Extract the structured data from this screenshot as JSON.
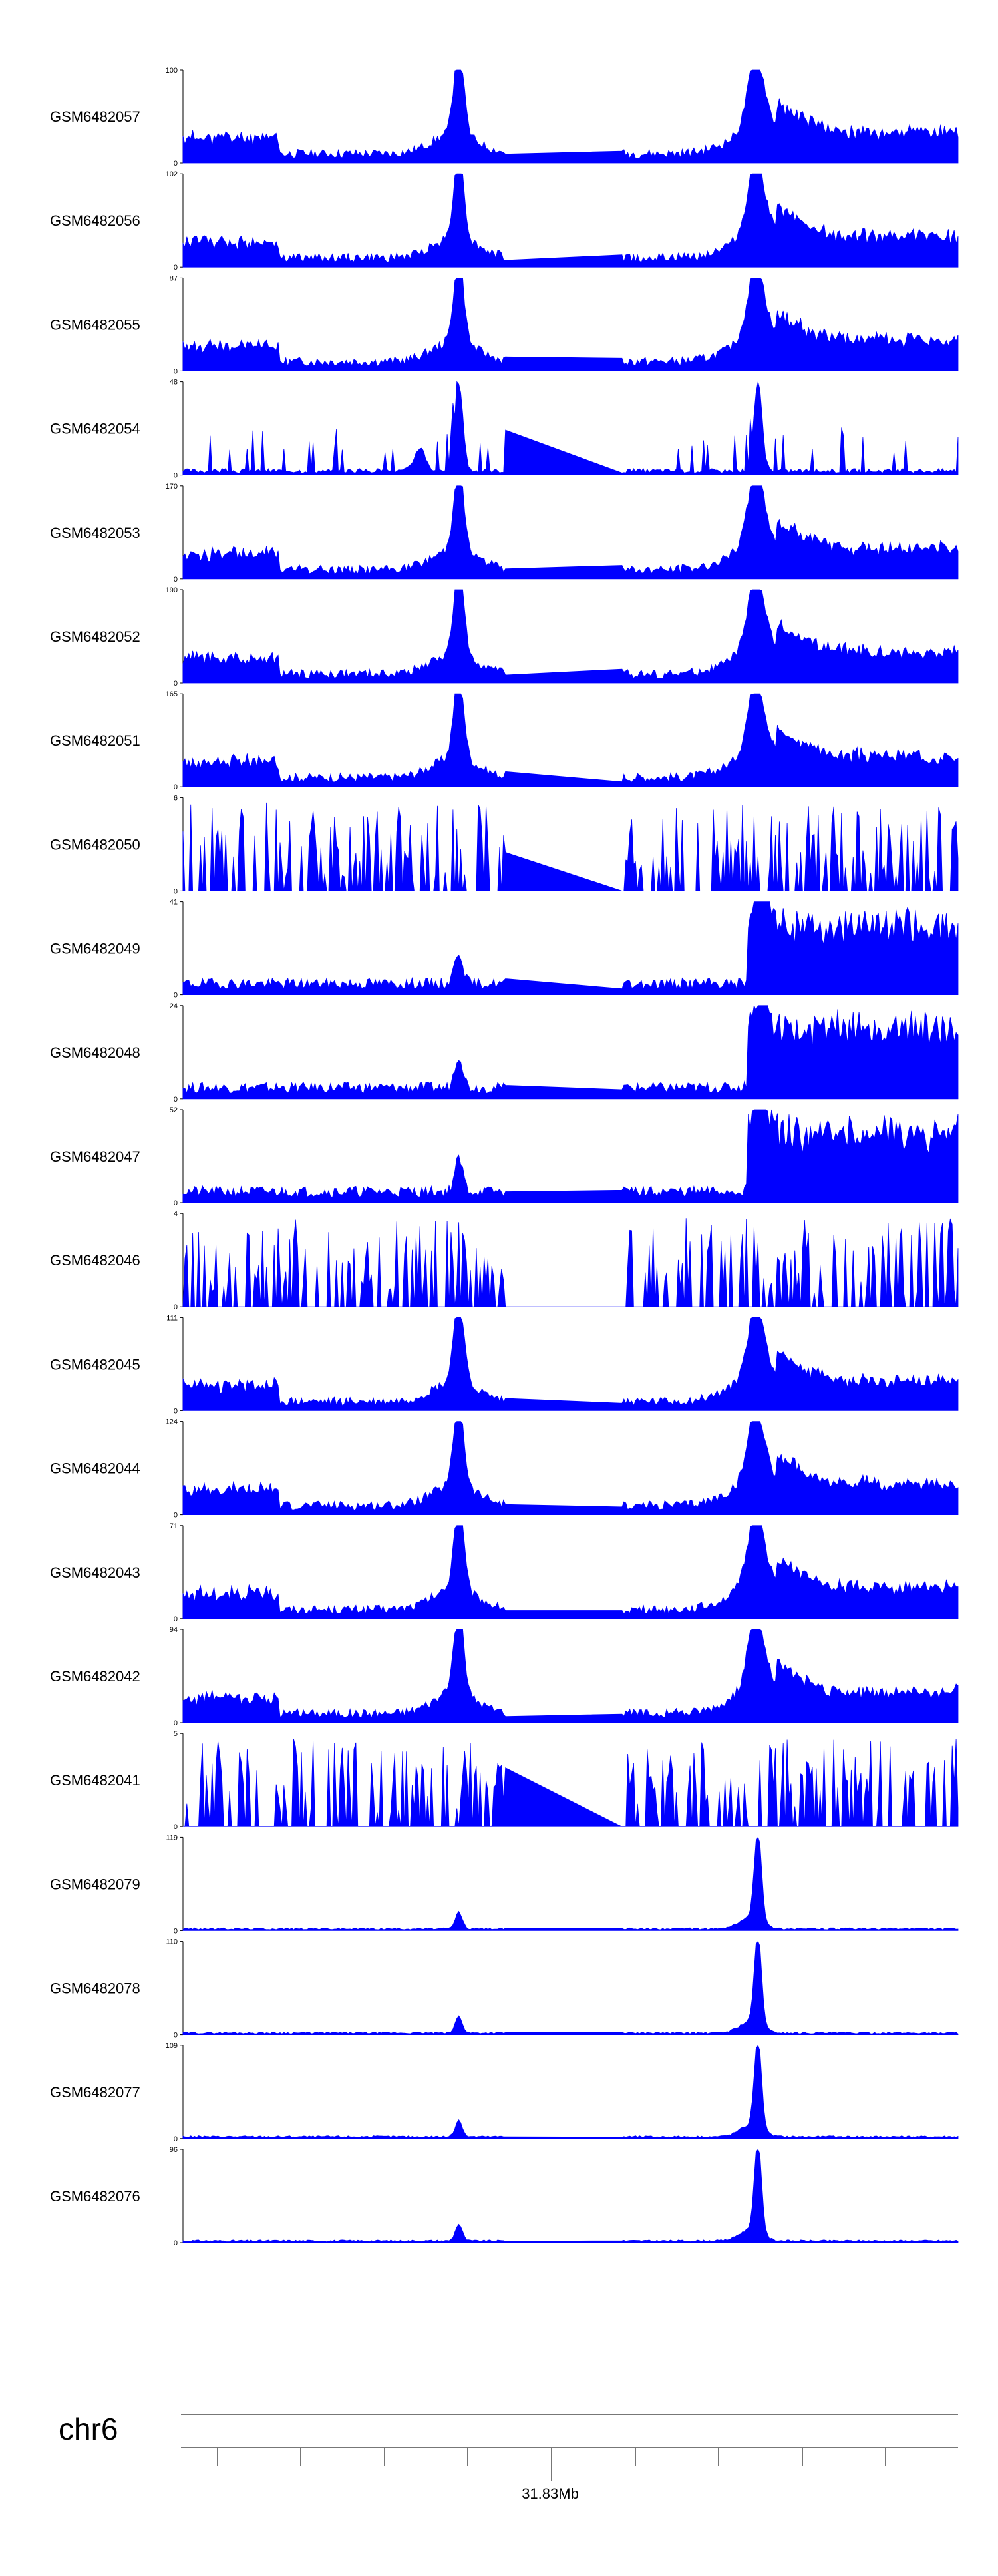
{
  "chromosome": "chr6",
  "position_label": "31.83Mb",
  "fill_color": "#0000ff",
  "axis_color": "#000000",
  "chart_data": {
    "type": "area",
    "title": "",
    "xlabel": "chr6",
    "ylabel": "",
    "x_tick_labels": [
      "31.83Mb"
    ],
    "series": [
      {
        "name": "GSM6482057",
        "ymax": 100,
        "ymin": 0,
        "profile": "A",
        "seed": 11
      },
      {
        "name": "GSM6482056",
        "ymax": 102,
        "ymin": 0,
        "profile": "A",
        "seed": 12
      },
      {
        "name": "GSM6482055",
        "ymax": 87,
        "ymin": 0,
        "profile": "A",
        "seed": 13
      },
      {
        "name": "GSM6482054",
        "ymax": 48,
        "ymin": 0,
        "profile": "N",
        "seed": 14
      },
      {
        "name": "GSM6482053",
        "ymax": 170,
        "ymin": 0,
        "profile": "A",
        "seed": 15
      },
      {
        "name": "GSM6482052",
        "ymax": 190,
        "ymin": 0,
        "profile": "A",
        "seed": 16
      },
      {
        "name": "GSM6482051",
        "ymax": 165,
        "ymin": 0,
        "profile": "A",
        "seed": 17
      },
      {
        "name": "GSM6482050",
        "ymax": 6,
        "ymin": 0,
        "profile": "S",
        "seed": 18
      },
      {
        "name": "GSM6482049",
        "ymax": 41,
        "ymin": 0,
        "profile": "B",
        "seed": 19
      },
      {
        "name": "GSM6482048",
        "ymax": 24,
        "ymin": 0,
        "profile": "B",
        "seed": 20
      },
      {
        "name": "GSM6482047",
        "ymax": 52,
        "ymin": 0,
        "profile": "B",
        "seed": 21
      },
      {
        "name": "GSM6482046",
        "ymax": 4,
        "ymin": 0,
        "profile": "S",
        "seed": 22
      },
      {
        "name": "GSM6482045",
        "ymax": 111,
        "ymin": 0,
        "profile": "A",
        "seed": 23
      },
      {
        "name": "GSM6482044",
        "ymax": 124,
        "ymin": 0,
        "profile": "A",
        "seed": 24
      },
      {
        "name": "GSM6482043",
        "ymax": 71,
        "ymin": 0,
        "profile": "A",
        "seed": 25
      },
      {
        "name": "GSM6482042",
        "ymax": 94,
        "ymin": 0,
        "profile": "A",
        "seed": 26
      },
      {
        "name": "GSM6482041",
        "ymax": 5,
        "ymin": 0,
        "profile": "S",
        "seed": 27
      },
      {
        "name": "GSM6482079",
        "ymax": 119,
        "ymin": 0,
        "profile": "C",
        "seed": 28
      },
      {
        "name": "GSM6482078",
        "ymax": 110,
        "ymin": 0,
        "profile": "C",
        "seed": 29
      },
      {
        "name": "GSM6482077",
        "ymax": 109,
        "ymin": 0,
        "profile": "C",
        "seed": 30
      },
      {
        "name": "GSM6482076",
        "ymax": 96,
        "ymin": 0,
        "profile": "C",
        "seed": 31
      }
    ]
  }
}
